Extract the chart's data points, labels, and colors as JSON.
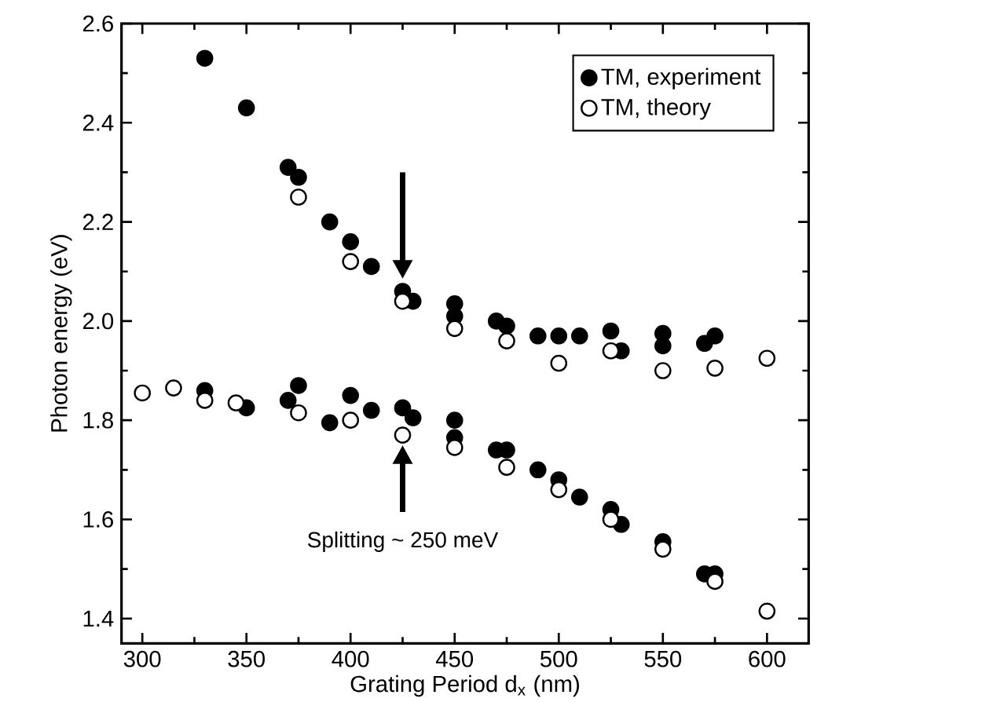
{
  "chart_data": {
    "type": "scatter",
    "xlabel": "Grating Period d$_{x}$ (nm)",
    "ylabel": "Photon energy (eV)",
    "xlim": [
      290,
      620
    ],
    "ylim": [
      1.35,
      2.6
    ],
    "xticks": [
      300,
      350,
      400,
      450,
      500,
      550,
      600
    ],
    "yticks": [
      1.4,
      1.6,
      1.8,
      {
        "value": 2.0,
        "label": "2.0"
      },
      2.2,
      2.4,
      2.6
    ],
    "marker": "circle",
    "legend": "top right",
    "annotations": [
      "Splitting ~ 250 meV"
    ],
    "series": [
      {
        "name": "TM, experiment",
        "color": "#000000",
        "x": [
          330,
          350,
          370,
          375,
          390,
          400,
          410,
          425,
          430,
          450,
          450,
          470,
          475,
          490,
          500,
          510,
          525,
          530,
          550,
          550,
          570,
          575,
          330,
          350,
          370,
          375,
          390,
          400,
          410,
          425,
          430,
          450,
          450,
          470,
          475,
          490,
          500,
          510,
          525,
          530,
          550,
          570,
          575
        ],
        "values": [
          2.53,
          2.43,
          2.31,
          2.29,
          2.2,
          2.16,
          2.11,
          2.06,
          2.04,
          2.035,
          2.01,
          2.0,
          1.99,
          1.97,
          1.97,
          1.97,
          1.98,
          1.94,
          1.975,
          1.95,
          1.955,
          1.97,
          1.86,
          1.825,
          1.84,
          1.87,
          1.795,
          1.85,
          1.82,
          1.825,
          1.805,
          1.8,
          1.765,
          1.74,
          1.74,
          1.7,
          1.68,
          1.645,
          1.62,
          1.59,
          1.555,
          1.49,
          1.49
        ]
      },
      {
        "name": "TM, theory",
        "color": "#ffffff",
        "x": [
          375,
          400,
          425,
          450,
          475,
          500,
          525,
          550,
          575,
          600,
          300,
          315,
          330,
          345,
          375,
          400,
          425,
          450,
          475,
          500,
          525,
          550,
          575,
          600
        ],
        "values": [
          2.25,
          2.12,
          2.04,
          1.985,
          1.96,
          1.915,
          1.94,
          1.9,
          1.905,
          1.925,
          1.855,
          1.865,
          1.84,
          1.835,
          1.815,
          1.8,
          1.77,
          1.745,
          1.705,
          1.66,
          1.6,
          1.54,
          1.475,
          1.415
        ]
      }
    ]
  }
}
